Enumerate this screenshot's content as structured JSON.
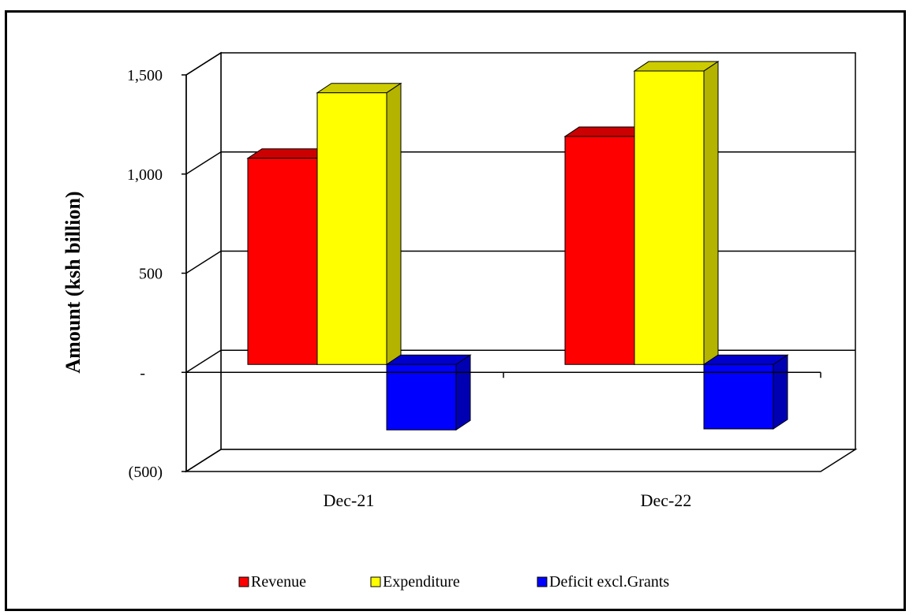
{
  "chart_data": {
    "type": "bar",
    "title": "",
    "xlabel": "",
    "ylabel": "Amount (ksh billion)",
    "ylim": [
      -500,
      1500
    ],
    "y_ticks": [
      -500,
      0,
      500,
      1000,
      1500
    ],
    "y_tick_labels": [
      "(500)",
      "-",
      "500",
      "1,000",
      "1,500"
    ],
    "categories": [
      "Dec-21",
      "Dec-22"
    ],
    "series": [
      {
        "name": "Revenue",
        "color": "#ff0000",
        "values": [
          1040,
          1150
        ]
      },
      {
        "name": "Expenditure",
        "color": "#ffff00",
        "values": [
          1370,
          1480
        ]
      },
      {
        "name": "Deficit excl.Grants",
        "color": "#0000ff",
        "values": [
          -330,
          -325
        ]
      }
    ],
    "grid": true,
    "legend_position": "bottom",
    "three_d": true
  }
}
